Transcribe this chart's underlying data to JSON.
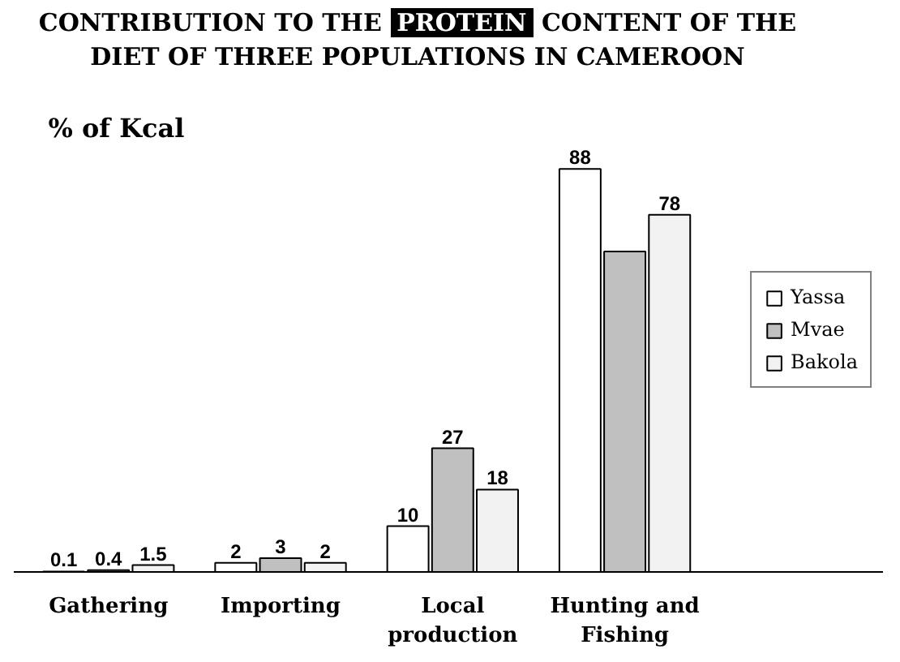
{
  "chart_data": {
    "type": "bar",
    "title": "CONTRIBUTION TO THE PROTEIN CONTENT OF THE DIET OF THREE POPULATIONS IN CAMEROON",
    "ylabel": "% of Kcal",
    "categories": [
      "Gathering",
      "Importing",
      "Local production",
      "Hunting and Fishing"
    ],
    "series": [
      {
        "name": "Yassa",
        "color": "#ffffff",
        "values": [
          0.1,
          2,
          10,
          88
        ],
        "value_labels": [
          "0.1",
          "2",
          "10",
          "88"
        ]
      },
      {
        "name": "Mvae",
        "color": "#c0c0c0",
        "values": [
          0.4,
          3,
          27,
          70
        ],
        "value_labels": [
          "0.4",
          "3",
          "27",
          null
        ]
      },
      {
        "name": "Bakola",
        "color": "#f2f2f2",
        "values": [
          1.5,
          2,
          18,
          78
        ],
        "value_labels": [
          "1.5",
          "2",
          "18",
          "78"
        ]
      }
    ],
    "legend": "right",
    "tick_labels": "x"
  }
}
